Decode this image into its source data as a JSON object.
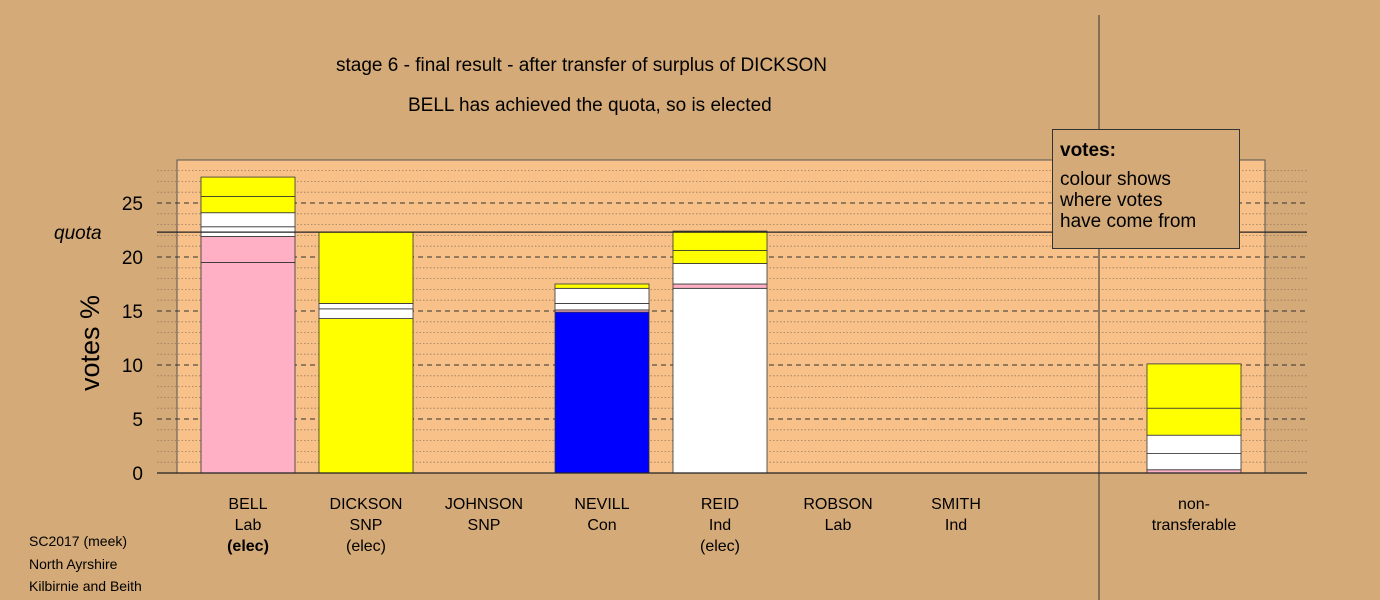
{
  "header": {
    "title": "stage 6 - final result - after transfer of surplus of DICKSON",
    "subtitle": "BELL has achieved the quota, so is elected"
  },
  "legend": {
    "title": "votes:",
    "lines": [
      "colour shows",
      "where votes",
      "have come from"
    ]
  },
  "footer": [
    "SC2017 (meek)",
    "North Ayrshire",
    "Kilbirnie and Beith"
  ],
  "chart_data": {
    "type": "bar",
    "stacked": true,
    "ylabel": "votes %",
    "ylim": [
      0,
      28
    ],
    "yticks": [
      0,
      5,
      10,
      15,
      20,
      25
    ],
    "quota": 22.3,
    "quota_label": "quota",
    "colors": {
      "background": "#d4aa78",
      "plot_area": "#f8c18a",
      "Lab": "#ffb0c4",
      "SNP": "#ffff00",
      "Con": "#0000ff",
      "Ind": "#ffffff",
      "Other": "#ffffff"
    },
    "categories": [
      {
        "name": "BELL",
        "party": "Lab",
        "status": "(elec)",
        "status_bold": true,
        "segments": [
          {
            "value": 19.5,
            "color": "#ffb0c4"
          },
          {
            "value": 2.4,
            "color": "#ffb0c4"
          },
          {
            "value": 0.9,
            "color": "#ffffff"
          },
          {
            "value": 1.3,
            "color": "#ffffff"
          },
          {
            "value": 1.5,
            "color": "#ffff00"
          },
          {
            "value": 1.8,
            "color": "#ffff00"
          }
        ]
      },
      {
        "name": "DICKSON",
        "party": "SNP",
        "status": "(elec)",
        "status_bold": false,
        "segments": [
          {
            "value": 14.3,
            "color": "#ffff00"
          },
          {
            "value": 0.9,
            "color": "#ffffff"
          },
          {
            "value": 0.5,
            "color": "#ffffff"
          },
          {
            "value": 6.6,
            "color": "#ffff00"
          }
        ]
      },
      {
        "name": "JOHNSON",
        "party": "SNP",
        "status": "",
        "status_bold": false,
        "segments": []
      },
      {
        "name": "NEVILL",
        "party": "Con",
        "status": "",
        "status_bold": false,
        "segments": [
          {
            "value": 14.9,
            "color": "#0000ff"
          },
          {
            "value": 0.2,
            "color": "#ffb0c4"
          },
          {
            "value": 0.6,
            "color": "#ffffff"
          },
          {
            "value": 1.4,
            "color": "#ffffff"
          },
          {
            "value": 0.4,
            "color": "#ffff00"
          }
        ]
      },
      {
        "name": "REID",
        "party": "Ind",
        "status": "(elec)",
        "status_bold": false,
        "segments": [
          {
            "value": 17.1,
            "color": "#ffffff"
          },
          {
            "value": 0.4,
            "color": "#ffb0c4"
          },
          {
            "value": 1.9,
            "color": "#ffffff"
          },
          {
            "value": 1.2,
            "color": "#ffff00"
          },
          {
            "value": 1.8,
            "color": "#ffff00"
          }
        ]
      },
      {
        "name": "ROBSON",
        "party": "Lab",
        "status": "",
        "status_bold": false,
        "segments": []
      },
      {
        "name": "SMITH",
        "party": "Ind",
        "status": "",
        "status_bold": false,
        "segments": []
      },
      {
        "name": "non-",
        "party": "transferable",
        "status": "",
        "status_bold": false,
        "segments": [
          {
            "value": 0.3,
            "color": "#ffb0c4"
          },
          {
            "value": 1.5,
            "color": "#ffffff"
          },
          {
            "value": 1.7,
            "color": "#ffffff"
          },
          {
            "value": 2.5,
            "color": "#ffff00"
          },
          {
            "value": 4.1,
            "color": "#ffff00"
          }
        ]
      }
    ]
  }
}
